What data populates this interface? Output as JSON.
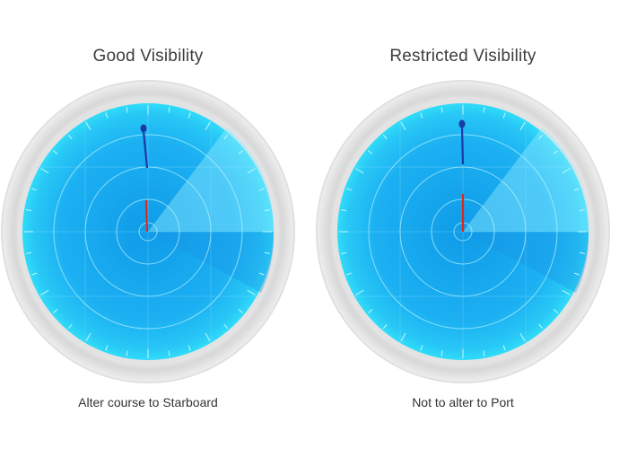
{
  "panels": [
    {
      "title": "Good Visibility",
      "caption": "Alter course to Starboard"
    },
    {
      "title": "Restricted Visibility",
      "caption": "Not to alter to Port"
    }
  ],
  "colors": {
    "bezel_outer": "#d7d7d7",
    "bezel_inner": "#ededed",
    "screen_edge": "#22ccee",
    "screen_fill": "#1fb4f2",
    "screen_center": "#0e9ae8",
    "sweep": "#7fe8ff",
    "grid": "#b8f3ff",
    "target_line": "#1a3aa6",
    "own_ship_line": "#e0271c"
  },
  "icons": [
    "radar-screen-icon",
    "target-echo-icon",
    "own-ship-heading-icon"
  ]
}
